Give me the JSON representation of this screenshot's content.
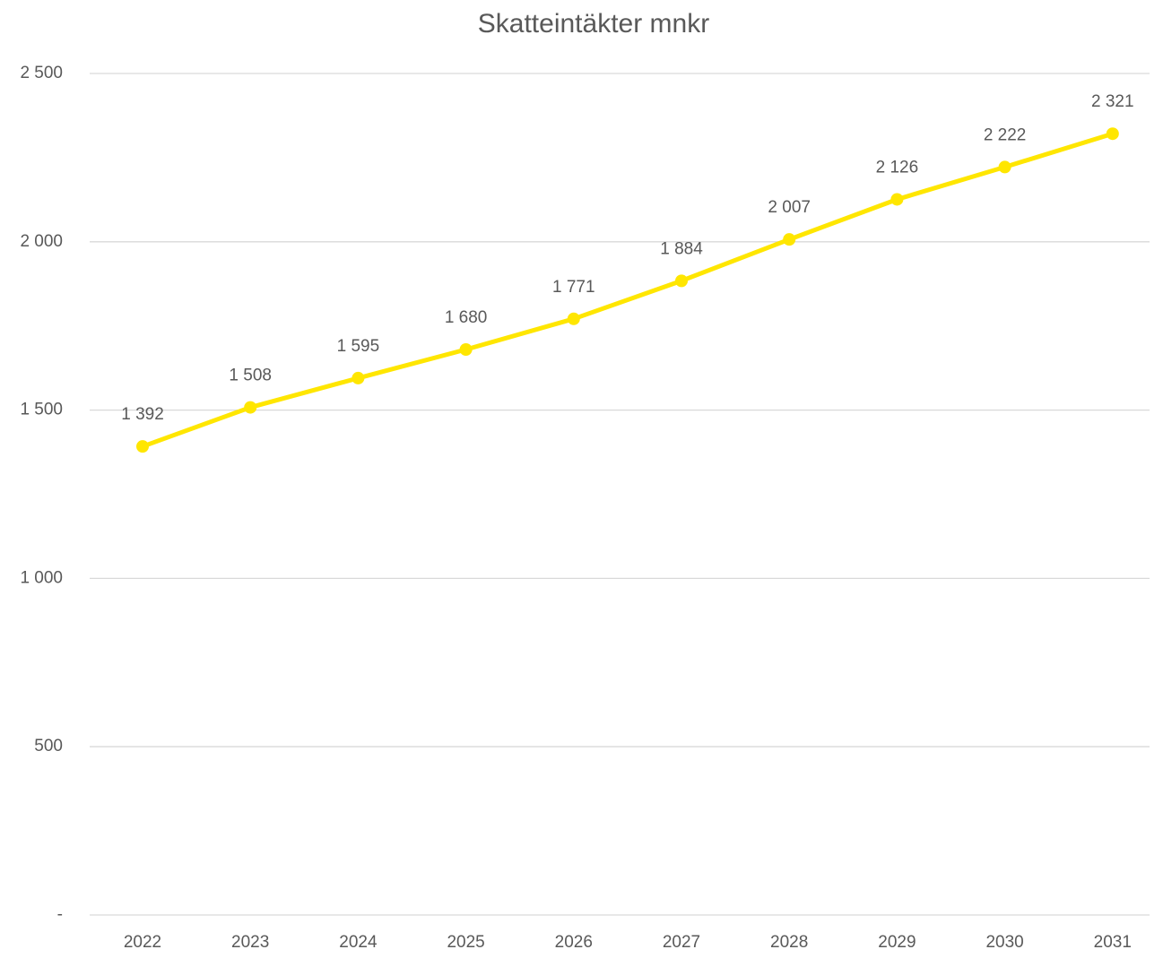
{
  "chart_data": {
    "type": "line",
    "title": "Skatteintäkter mnkr",
    "categories": [
      "2022",
      "2023",
      "2024",
      "2025",
      "2026",
      "2027",
      "2028",
      "2029",
      "2030",
      "2031"
    ],
    "series": [
      {
        "color": "#ffe600",
        "values": [
          1392,
          1508,
          1595,
          1680,
          1771,
          1884,
          2007,
          2126,
          2222,
          2321
        ],
        "value_labels": [
          "1 392",
          "1 508",
          "1 595",
          "1 680",
          "1 771",
          "1 884",
          "2 007",
          "2 126",
          "2 222",
          "2 321"
        ]
      }
    ],
    "ylim": [
      0,
      2500
    ],
    "yticks": [
      {
        "value": 0,
        "label": "-"
      },
      500,
      {
        "value": 1000,
        "label": "1 000"
      },
      {
        "value": 1500,
        "label": "1 500"
      },
      {
        "value": 2000,
        "label": "2 000"
      },
      {
        "value": 2500,
        "label": "2 500"
      }
    ],
    "grid": true
  }
}
